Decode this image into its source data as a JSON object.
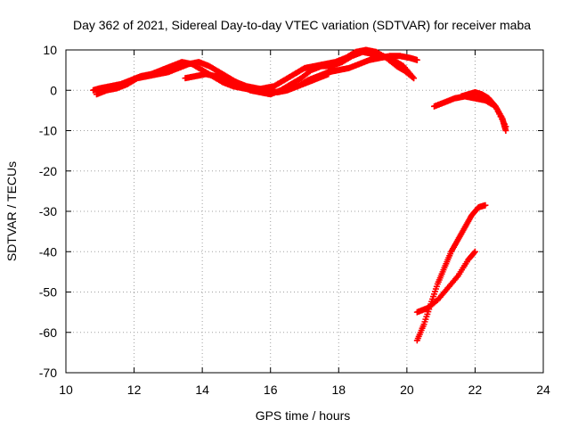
{
  "chart_data": {
    "type": "scatter",
    "title": "Day 362 of 2021, Sidereal Day-to-day VTEC variation (SDTVAR) for receiver maba",
    "xlabel": "GPS time / hours",
    "ylabel": "SDTVAR / TECUs",
    "xlim": [
      10,
      24
    ],
    "ylim": [
      -70,
      10
    ],
    "xticks": [
      10,
      12,
      14,
      16,
      18,
      20,
      22,
      24
    ],
    "yticks": [
      -70,
      -60,
      -50,
      -40,
      -30,
      -20,
      -10,
      0,
      10
    ],
    "grid": true,
    "marker": "plus",
    "color": "#ff0000",
    "series": [
      {
        "x": [
          10.8,
          11.0,
          11.3,
          11.6,
          11.9,
          12.2,
          12.5,
          12.8,
          13.1,
          13.4,
          13.7,
          14.0,
          14.3,
          14.6,
          14.9,
          15.2,
          15.5,
          15.8,
          16.1,
          16.4,
          16.7,
          17.0,
          17.3,
          17.6,
          17.9,
          18.2,
          18.5,
          18.8,
          19.1,
          19.4,
          19.7,
          19.9,
          20.2
        ],
        "y": [
          0,
          0.5,
          1,
          1.5,
          2.5,
          3.5,
          4,
          5,
          6,
          7,
          6.5,
          5,
          3.5,
          2,
          1,
          0.5,
          0,
          0.5,
          1,
          2.5,
          4,
          5.5,
          6,
          6.5,
          7,
          8,
          9.5,
          10,
          9.5,
          8,
          6,
          5,
          3
        ]
      },
      {
        "x": [
          10.9,
          11.2,
          11.5,
          11.8,
          12.1,
          12.4,
          12.7,
          13.0,
          13.3,
          13.6,
          13.9,
          14.2,
          14.5,
          14.8,
          15.1,
          15.4,
          15.7,
          16.0,
          16.3,
          16.6,
          16.9,
          17.2,
          17.5,
          17.8,
          18.1,
          18.4,
          18.7,
          19.0,
          19.3,
          19.6,
          19.9,
          20.2
        ],
        "y": [
          -1,
          0,
          0.5,
          1.5,
          3,
          3.5,
          4,
          4.5,
          5.5,
          6.5,
          7,
          6,
          4.5,
          3,
          1.5,
          0,
          -0.5,
          -1,
          0,
          1.5,
          3,
          5,
          6,
          6,
          7,
          8.5,
          9.5,
          9,
          8.5,
          7.5,
          6,
          3
        ]
      },
      {
        "x": [
          13.5,
          13.8,
          14.1,
          14.4,
          14.7,
          15.0,
          15.3,
          15.6,
          15.9,
          16.2,
          16.5,
          16.8,
          17.1,
          17.4,
          17.7
        ],
        "y": [
          3,
          3.5,
          4,
          3.5,
          3,
          2,
          1,
          0.5,
          0,
          -0.5,
          0,
          1,
          2,
          3,
          4
        ]
      },
      {
        "x": [
          16.2,
          16.5,
          16.8,
          17.1,
          17.4,
          17.7,
          18.0,
          18.3,
          18.6,
          18.9,
          19.2,
          19.5,
          19.8,
          20.1,
          20.3
        ],
        "y": [
          -0.5,
          0.5,
          1,
          2.5,
          3.5,
          4.5,
          5,
          5.5,
          6.5,
          7.5,
          8,
          8.5,
          8.5,
          8,
          7.5
        ]
      },
      {
        "x": [
          20.8,
          21.1,
          21.4,
          21.7,
          22.0,
          22.3,
          22.6,
          22.9
        ],
        "y": [
          -4,
          -3,
          -2,
          -1.5,
          -2,
          -2.5,
          -4,
          -9
        ]
      },
      {
        "x": [
          21.6,
          21.8,
          22.0,
          22.2,
          22.4,
          22.6,
          22.8,
          22.9
        ],
        "y": [
          -1.5,
          -1,
          -0.5,
          -1,
          -2,
          -4,
          -7,
          -10
        ]
      },
      {
        "x": [
          20.3,
          20.5,
          20.7,
          20.9,
          21.1,
          21.3,
          21.5,
          21.7,
          21.9,
          22.1,
          22.3
        ],
        "y": [
          -62,
          -58,
          -53,
          -48,
          -44,
          -40,
          -37,
          -34,
          -31,
          -29,
          -28.5
        ]
      },
      {
        "x": [
          20.3,
          20.6,
          20.9,
          21.2,
          21.5,
          21.8,
          22.0
        ],
        "y": [
          -55,
          -54,
          -52,
          -49,
          -46,
          -42,
          -40
        ]
      }
    ]
  }
}
